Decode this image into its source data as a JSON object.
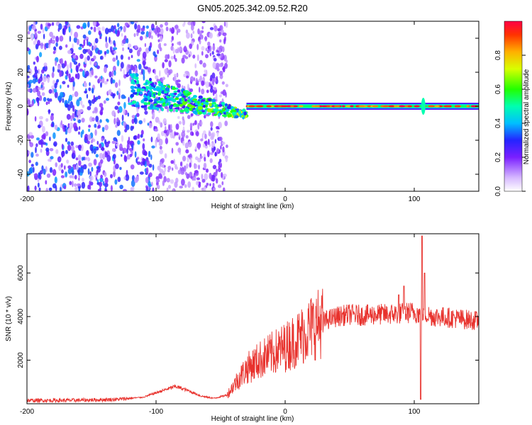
{
  "title": "GN05.2025.342.09.52.R20",
  "chart_data": [
    {
      "type": "heatmap",
      "xlabel": "Height of straight line (km)",
      "ylabel": "Frequency (Hz)",
      "xlim": [
        -200,
        150
      ],
      "ylim": [
        -50,
        50
      ],
      "x_ticks": [
        -200,
        -100,
        0,
        100
      ],
      "y_ticks": [
        -40,
        -20,
        0,
        20,
        40
      ],
      "colorbar": {
        "label": "Normalized spectral amplitude",
        "range": [
          0,
          1
        ],
        "ticks": [
          "0.0",
          "0.2",
          "0.4",
          "0.6",
          "0.8"
        ]
      },
      "features": [
        {
          "name": "diffuse noise",
          "x_range": [
            -200,
            -45
          ],
          "freq_range": [
            -50,
            50
          ],
          "amplitude": 0.2
        },
        {
          "name": "converging trace",
          "x_range": [
            -120,
            -30
          ],
          "freq_start": 10,
          "freq_end": -5,
          "amplitude": 0.45
        },
        {
          "name": "steady carrier",
          "x_range": [
            -30,
            150
          ],
          "freq": 0,
          "amplitude": 0.95
        },
        {
          "name": "wiggle",
          "x": 107,
          "freq_range": [
            -5,
            5
          ],
          "amplitude": 0.5
        }
      ]
    },
    {
      "type": "line",
      "xlabel": "Height of straight line (km)",
      "ylabel": "SNR (10 * v/v)",
      "xlim": [
        -200,
        150
      ],
      "ylim": [
        0,
        7800
      ],
      "x_ticks": [
        -200,
        -100,
        0,
        100
      ],
      "y_ticks": [
        2000,
        4000,
        6000
      ],
      "series": [
        {
          "name": "SNR",
          "color": "#e8322d",
          "x": [
            -200,
            -160,
            -130,
            -110,
            -95,
            -85,
            -75,
            -65,
            -55,
            -45,
            -38,
            -30,
            -20,
            -10,
            0,
            10,
            20,
            30,
            40,
            50,
            60,
            70,
            80,
            90,
            100,
            105,
            110,
            115,
            120,
            135,
            150
          ],
          "y": [
            150,
            160,
            200,
            300,
            600,
            800,
            600,
            350,
            250,
            400,
            1000,
            1600,
            2000,
            2300,
            2600,
            3000,
            3500,
            3800,
            4000,
            4100,
            4050,
            4100,
            4100,
            4150,
            4200,
            4100,
            4100,
            4000,
            4000,
            3900,
            3800
          ]
        }
      ],
      "spikes": [
        {
          "x": 88,
          "y": 5000
        },
        {
          "x": 92,
          "y": 5400
        },
        {
          "x": 105,
          "y": 200
        },
        {
          "x": 106,
          "y": 7700
        },
        {
          "x": 108,
          "y": 6000
        }
      ]
    }
  ]
}
